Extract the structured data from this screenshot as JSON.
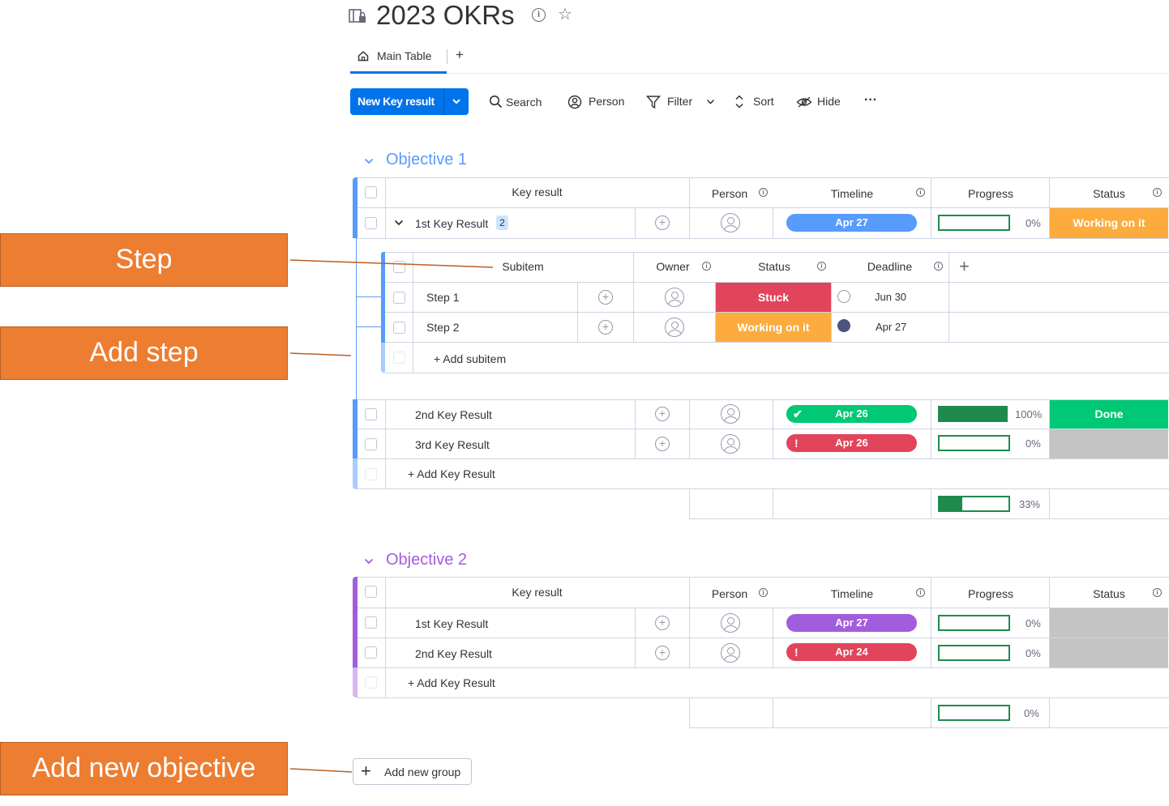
{
  "board": {
    "title": "2023 OKRs"
  },
  "tabs": {
    "main_table": "Main Table",
    "add": "+"
  },
  "toolbar": {
    "new_item": "New Key result",
    "search": "Search",
    "person": "Person",
    "filter": "Filter",
    "sort": "Sort",
    "hide": "Hide",
    "more": "···"
  },
  "columns": {
    "key_result": "Key result",
    "person": "Person",
    "timeline": "Timeline",
    "progress": "Progress",
    "status": "Status"
  },
  "subcolumns": {
    "subitem": "Subitem",
    "owner": "Owner",
    "status": "Status",
    "deadline": "Deadline",
    "add": "+"
  },
  "groups": [
    {
      "title": "Objective 1",
      "color": "#579bfc",
      "items": [
        {
          "name": "1st Key Result",
          "subitems_count": "2",
          "timeline": "Apr 27",
          "timeline_color": "#579bfc",
          "progress": 0,
          "progress_label": "0%",
          "status": "Working on it",
          "status_color": "#fdab3d"
        },
        {
          "name": "2nd Key Result",
          "timeline": "Apr 26",
          "timeline_color": "#00c875",
          "timeline_mark": "✔",
          "progress": 100,
          "progress_label": "100%",
          "status": "Done",
          "status_color": "#00c875"
        },
        {
          "name": "3rd Key Result",
          "timeline": "Apr 26",
          "timeline_color": "#e2445c",
          "timeline_mark": "!",
          "progress": 0,
          "progress_label": "0%",
          "status": "",
          "status_color": "#c4c4c4"
        }
      ],
      "add_item": "+ Add Key Result",
      "summary_progress": 33,
      "summary_label": "33%"
    },
    {
      "title": "Objective 2",
      "color": "#a25ddc",
      "items": [
        {
          "name": "1st Key Result",
          "timeline": "Apr 27",
          "timeline_color": "#a25ddc",
          "progress": 0,
          "progress_label": "0%",
          "status": "",
          "status_color": "#c4c4c4"
        },
        {
          "name": "2nd Key Result",
          "timeline": "Apr 24",
          "timeline_color": "#e2445c",
          "timeline_mark": "!",
          "progress": 0,
          "progress_label": "0%",
          "status": "",
          "status_color": "#c4c4c4"
        }
      ],
      "add_item": "+ Add Key Result",
      "summary_progress": 0,
      "summary_label": "0%"
    }
  ],
  "subitems": [
    {
      "name": "Step 1",
      "status": "Stuck",
      "status_color": "#e2445c",
      "deadline": "Jun 30",
      "done": false
    },
    {
      "name": "Step 2",
      "status": "Working on it",
      "status_color": "#fdab3d",
      "deadline": "Apr 27",
      "done": true
    }
  ],
  "add_subitem": "+ Add subitem",
  "add_group": "Add new group",
  "callouts": {
    "step": "Step",
    "add_step": "Add step",
    "add_objective": "Add new objective"
  }
}
